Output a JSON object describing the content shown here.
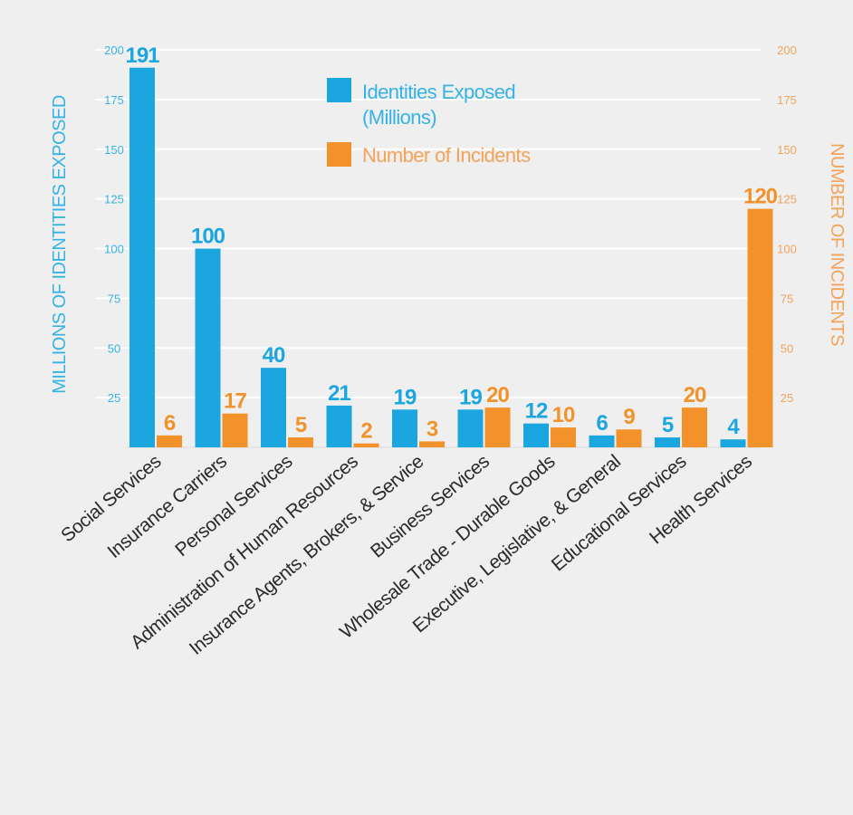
{
  "chart_data": {
    "type": "bar",
    "title": "",
    "categories": [
      "Social Services",
      "Insurance Carriers",
      "Personal Services",
      "Administration of Human Resources",
      "Insurance Agents, Brokers, & Service",
      "Business Services",
      "Wholesale Trade - Durable Goods",
      "Executive, Legislative, & General",
      "Educational Services",
      "Health Services"
    ],
    "series": [
      {
        "name": "Identities Exposed (Millions)",
        "legend_lines": [
          "Identities Exposed",
          "(Millions)"
        ],
        "axis": "left",
        "color": "#1ca6df",
        "values": [
          191,
          100,
          40,
          21,
          19,
          19,
          12,
          6,
          5,
          4
        ]
      },
      {
        "name": "Number of Incidents",
        "axis": "right",
        "color": "#f3922b",
        "values": [
          6,
          17,
          5,
          2,
          3,
          20,
          10,
          9,
          20,
          120
        ]
      }
    ],
    "ylabel": "MILLIONS OF IDENTITIES EXPOSED",
    "ylabel_right": "NUMBER OF INCIDENTS",
    "ylim": [
      0,
      200
    ],
    "ylim_right": [
      0,
      200
    ],
    "yticks": [
      25,
      50,
      75,
      100,
      125,
      150,
      175,
      200
    ],
    "yticks_right": [
      25,
      50,
      75,
      100,
      125,
      150,
      175,
      200
    ],
    "grid": true,
    "legend": "top-center",
    "colors": {
      "left_axis": "#35b3e6",
      "right_axis": "#f3a35a",
      "grid": "#ffffff",
      "background": "#efefef"
    }
  }
}
